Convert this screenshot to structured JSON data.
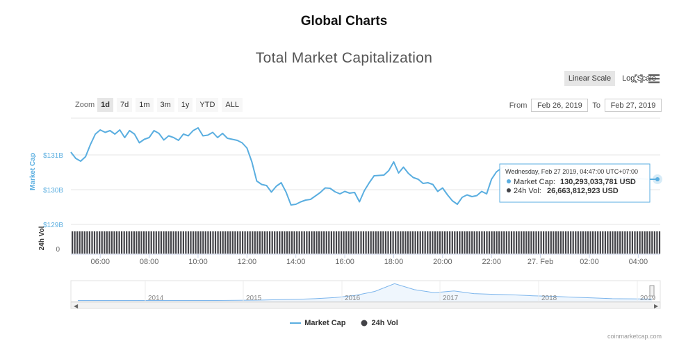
{
  "page": {
    "title": "Global Charts"
  },
  "toolbar": {
    "linear_scale_label": "Linear Scale",
    "log_scale_label": "Log Scale",
    "zoom_label": "Zoom",
    "zoom_options": [
      "1d",
      "7d",
      "1m",
      "3m",
      "1y",
      "YTD",
      "ALL"
    ],
    "zoom_selected": "1d",
    "from_label": "From",
    "to_label": "To",
    "from_value": "Feb 26, 2019",
    "to_value": "Feb 27, 2019"
  },
  "tooltip": {
    "header": "Wednesday, Feb 27 2019, 04:47:00 UTC+07:00",
    "market_cap_label": "Market Cap:",
    "market_cap_value": "130,293,033,781 USD",
    "volume_label": "24h Vol:",
    "volume_value": "26,663,812,923 USD"
  },
  "legend": {
    "market_cap": "Market Cap",
    "volume": "24h Vol"
  },
  "credit": "coinmarketcap.com",
  "colors": {
    "market_cap": "#5aaee0",
    "volume": "#434348",
    "navigator": "#7cb5ec"
  },
  "chart_data": {
    "type": "line",
    "title": "Total Market Capitalization",
    "ylabel": "Market Cap",
    "y_unit": "USD",
    "y_ticks": [
      "$129B",
      "$130B",
      "$131B"
    ],
    "y_tick_values": [
      129000000000,
      130000000000,
      131000000000
    ],
    "ylim": [
      129000000000,
      132060000000
    ],
    "x_ticks": [
      "06:00",
      "08:00",
      "10:00",
      "12:00",
      "14:00",
      "16:00",
      "18:00",
      "20:00",
      "22:00",
      "27. Feb",
      "02:00",
      "04:00"
    ],
    "x_tick_hours": [
      6,
      8,
      10,
      12,
      14,
      16,
      18,
      20,
      22,
      24,
      26,
      28
    ],
    "xlim_hours": [
      4.8,
      28.9
    ],
    "series": [
      {
        "name": "Market Cap",
        "hours": [
          4.8,
          5.0,
          5.2,
          5.4,
          5.6,
          5.8,
          6.0,
          6.2,
          6.4,
          6.6,
          6.8,
          7.0,
          7.2,
          7.4,
          7.6,
          7.8,
          8.0,
          8.2,
          8.4,
          8.6,
          8.8,
          9.0,
          9.2,
          9.4,
          9.6,
          9.8,
          10.0,
          10.2,
          10.4,
          10.6,
          10.8,
          11.0,
          11.2,
          11.4,
          11.6,
          11.8,
          12.0,
          12.2,
          12.4,
          12.6,
          12.8,
          13.0,
          13.2,
          13.4,
          13.6,
          13.8,
          14.0,
          14.2,
          14.4,
          14.6,
          14.8,
          15.0,
          15.2,
          15.4,
          15.6,
          15.8,
          16.0,
          16.2,
          16.4,
          16.6,
          16.8,
          17.0,
          17.2,
          17.4,
          17.6,
          17.8,
          18.0,
          18.2,
          18.4,
          18.6,
          18.8,
          19.0,
          19.2,
          19.4,
          19.6,
          19.8,
          20.0,
          20.2,
          20.4,
          20.6,
          20.8,
          21.0,
          21.2,
          21.4,
          21.6,
          21.8,
          22.0,
          22.2,
          22.4,
          22.6,
          22.8
        ],
        "values": [
          131080000000,
          130900000000,
          130820000000,
          130950000000,
          131300000000,
          131600000000,
          131720000000,
          131650000000,
          131700000000,
          131600000000,
          131720000000,
          131500000000,
          131700000000,
          131600000000,
          131350000000,
          131450000000,
          131500000000,
          131700000000,
          131620000000,
          131430000000,
          131550000000,
          131500000000,
          131420000000,
          131600000000,
          131550000000,
          131700000000,
          131780000000,
          131550000000,
          131570000000,
          131650000000,
          131500000000,
          131620000000,
          131480000000,
          131450000000,
          131420000000,
          131350000000,
          131200000000,
          130800000000,
          130250000000,
          130150000000,
          130120000000,
          129930000000,
          130100000000,
          130200000000,
          129930000000,
          129560000000,
          129580000000,
          129650000000,
          129700000000,
          129720000000,
          129820000000,
          129920000000,
          130050000000,
          130040000000,
          129940000000,
          129880000000,
          129950000000,
          129900000000,
          129920000000,
          129650000000,
          129970000000,
          130200000000,
          130400000000,
          130410000000,
          130420000000,
          130550000000,
          130800000000,
          130480000000,
          130650000000,
          130470000000,
          130350000000,
          130300000000,
          130180000000,
          130200000000,
          130150000000,
          129950000000,
          130050000000,
          129850000000,
          129680000000,
          129580000000,
          129780000000,
          129850000000,
          129800000000,
          129830000000,
          129950000000,
          129880000000,
          130300000000,
          130510000000,
          130620000000,
          130700000000,
          130520000000
        ]
      },
      {
        "name": "24h Vol",
        "y_ticks": [
          "0"
        ],
        "note_values": "roughly constant",
        "approx_value": 26663812923
      }
    ],
    "navigator": {
      "x_ticks": [
        "2014",
        "2015",
        "2016",
        "2017",
        "2018",
        "2019"
      ],
      "values_relative": [
        0.02,
        0.02,
        0.02,
        0.02,
        0.02,
        0.02,
        0.02,
        0.02,
        0.03,
        0.04,
        0.06,
        0.08,
        0.12,
        0.18,
        0.3,
        0.52,
        0.95,
        0.62,
        0.45,
        0.55,
        0.4,
        0.36,
        0.33,
        0.28,
        0.25,
        0.2,
        0.16,
        0.12,
        0.11,
        0.1
      ]
    },
    "grid": true,
    "legend_position": "bottom-center"
  }
}
